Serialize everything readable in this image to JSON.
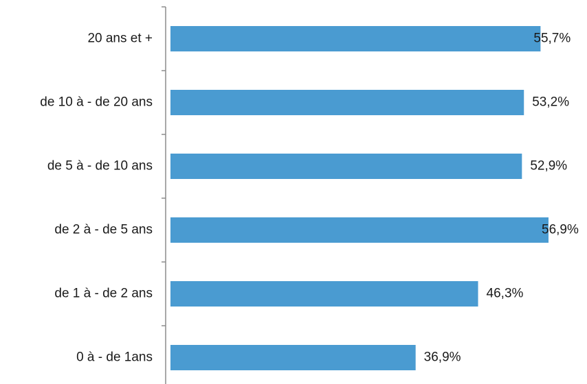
{
  "chart_data": {
    "type": "bar",
    "orientation": "horizontal",
    "categories": [
      "20 ans et +",
      "de 10 à - de 20 ans",
      "de 5 à - de 10 ans",
      "de 2 à - de 5 ans",
      "de 1 à - de 2 ans",
      "0 à - de 1ans"
    ],
    "values": [
      55.7,
      53.2,
      52.9,
      56.9,
      46.3,
      36.9
    ],
    "value_labels": [
      "55,7%",
      "53,2%",
      "52,9%",
      "56,9%",
      "46,3%",
      "36,9%"
    ],
    "xlim": [
      0,
      60
    ],
    "bar_color": "#4a9bd1",
    "axis_color": "#8c8c8c",
    "grid": false,
    "legend": false
  }
}
